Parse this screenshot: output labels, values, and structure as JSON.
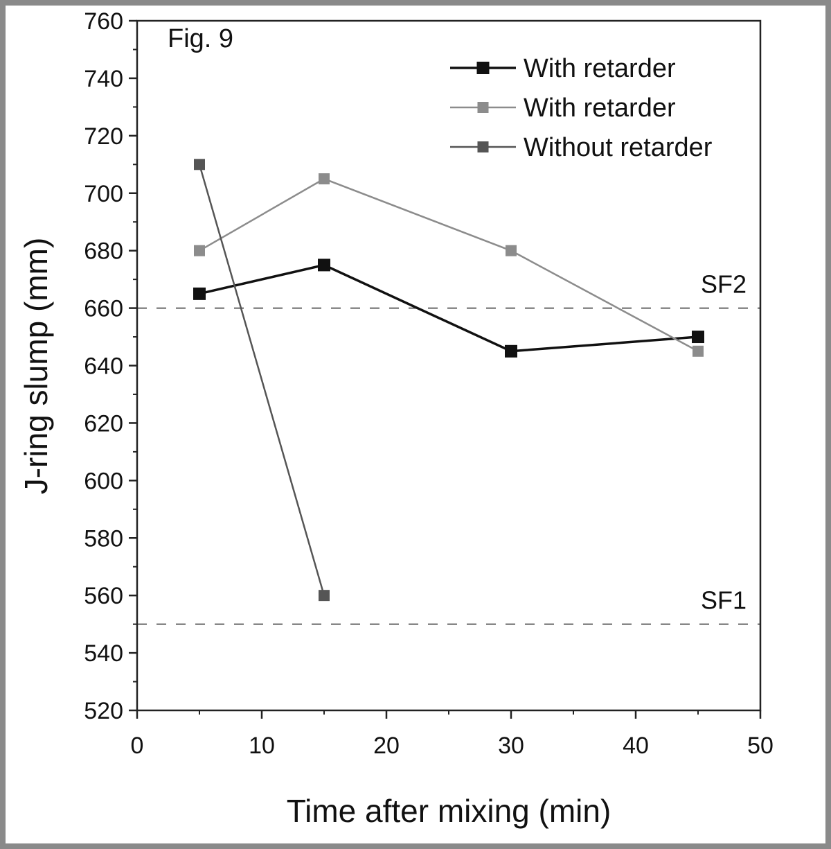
{
  "figure_label": "Fig. 9",
  "chart_data": {
    "type": "line",
    "xlabel": "Time after mixing (min)",
    "ylabel": "J-ring slump (mm)",
    "xlim": [
      0,
      50
    ],
    "ylim": [
      520,
      760
    ],
    "x_ticks": [
      0,
      10,
      20,
      30,
      40,
      50
    ],
    "x_tick_labels": [
      "0",
      "10",
      "20",
      "30",
      "40",
      "50"
    ],
    "y_ticks": [
      520,
      540,
      560,
      580,
      600,
      620,
      640,
      660,
      680,
      700,
      720,
      740,
      760
    ],
    "y_tick_labels": [
      "520",
      "540",
      "560",
      "580",
      "600",
      "620",
      "640",
      "660",
      "680",
      "700",
      "720",
      "740",
      "760"
    ],
    "grid": false,
    "legend_position": "top-right",
    "series": [
      {
        "name": "With retarder",
        "x": [
          5,
          15,
          30,
          45
        ],
        "y": [
          665,
          675,
          645,
          650
        ],
        "color": "#111111"
      },
      {
        "name": "With retarder",
        "x": [
          5,
          15,
          30,
          45
        ],
        "y": [
          680,
          705,
          680,
          645
        ],
        "color": "#8c8c8c"
      },
      {
        "name": "Without retarder",
        "x": [
          5,
          15
        ],
        "y": [
          710,
          560
        ],
        "color": "#555555"
      }
    ],
    "reference_lines": [
      {
        "label": "SF2",
        "y": 660
      },
      {
        "label": "SF1",
        "y": 550
      }
    ]
  }
}
